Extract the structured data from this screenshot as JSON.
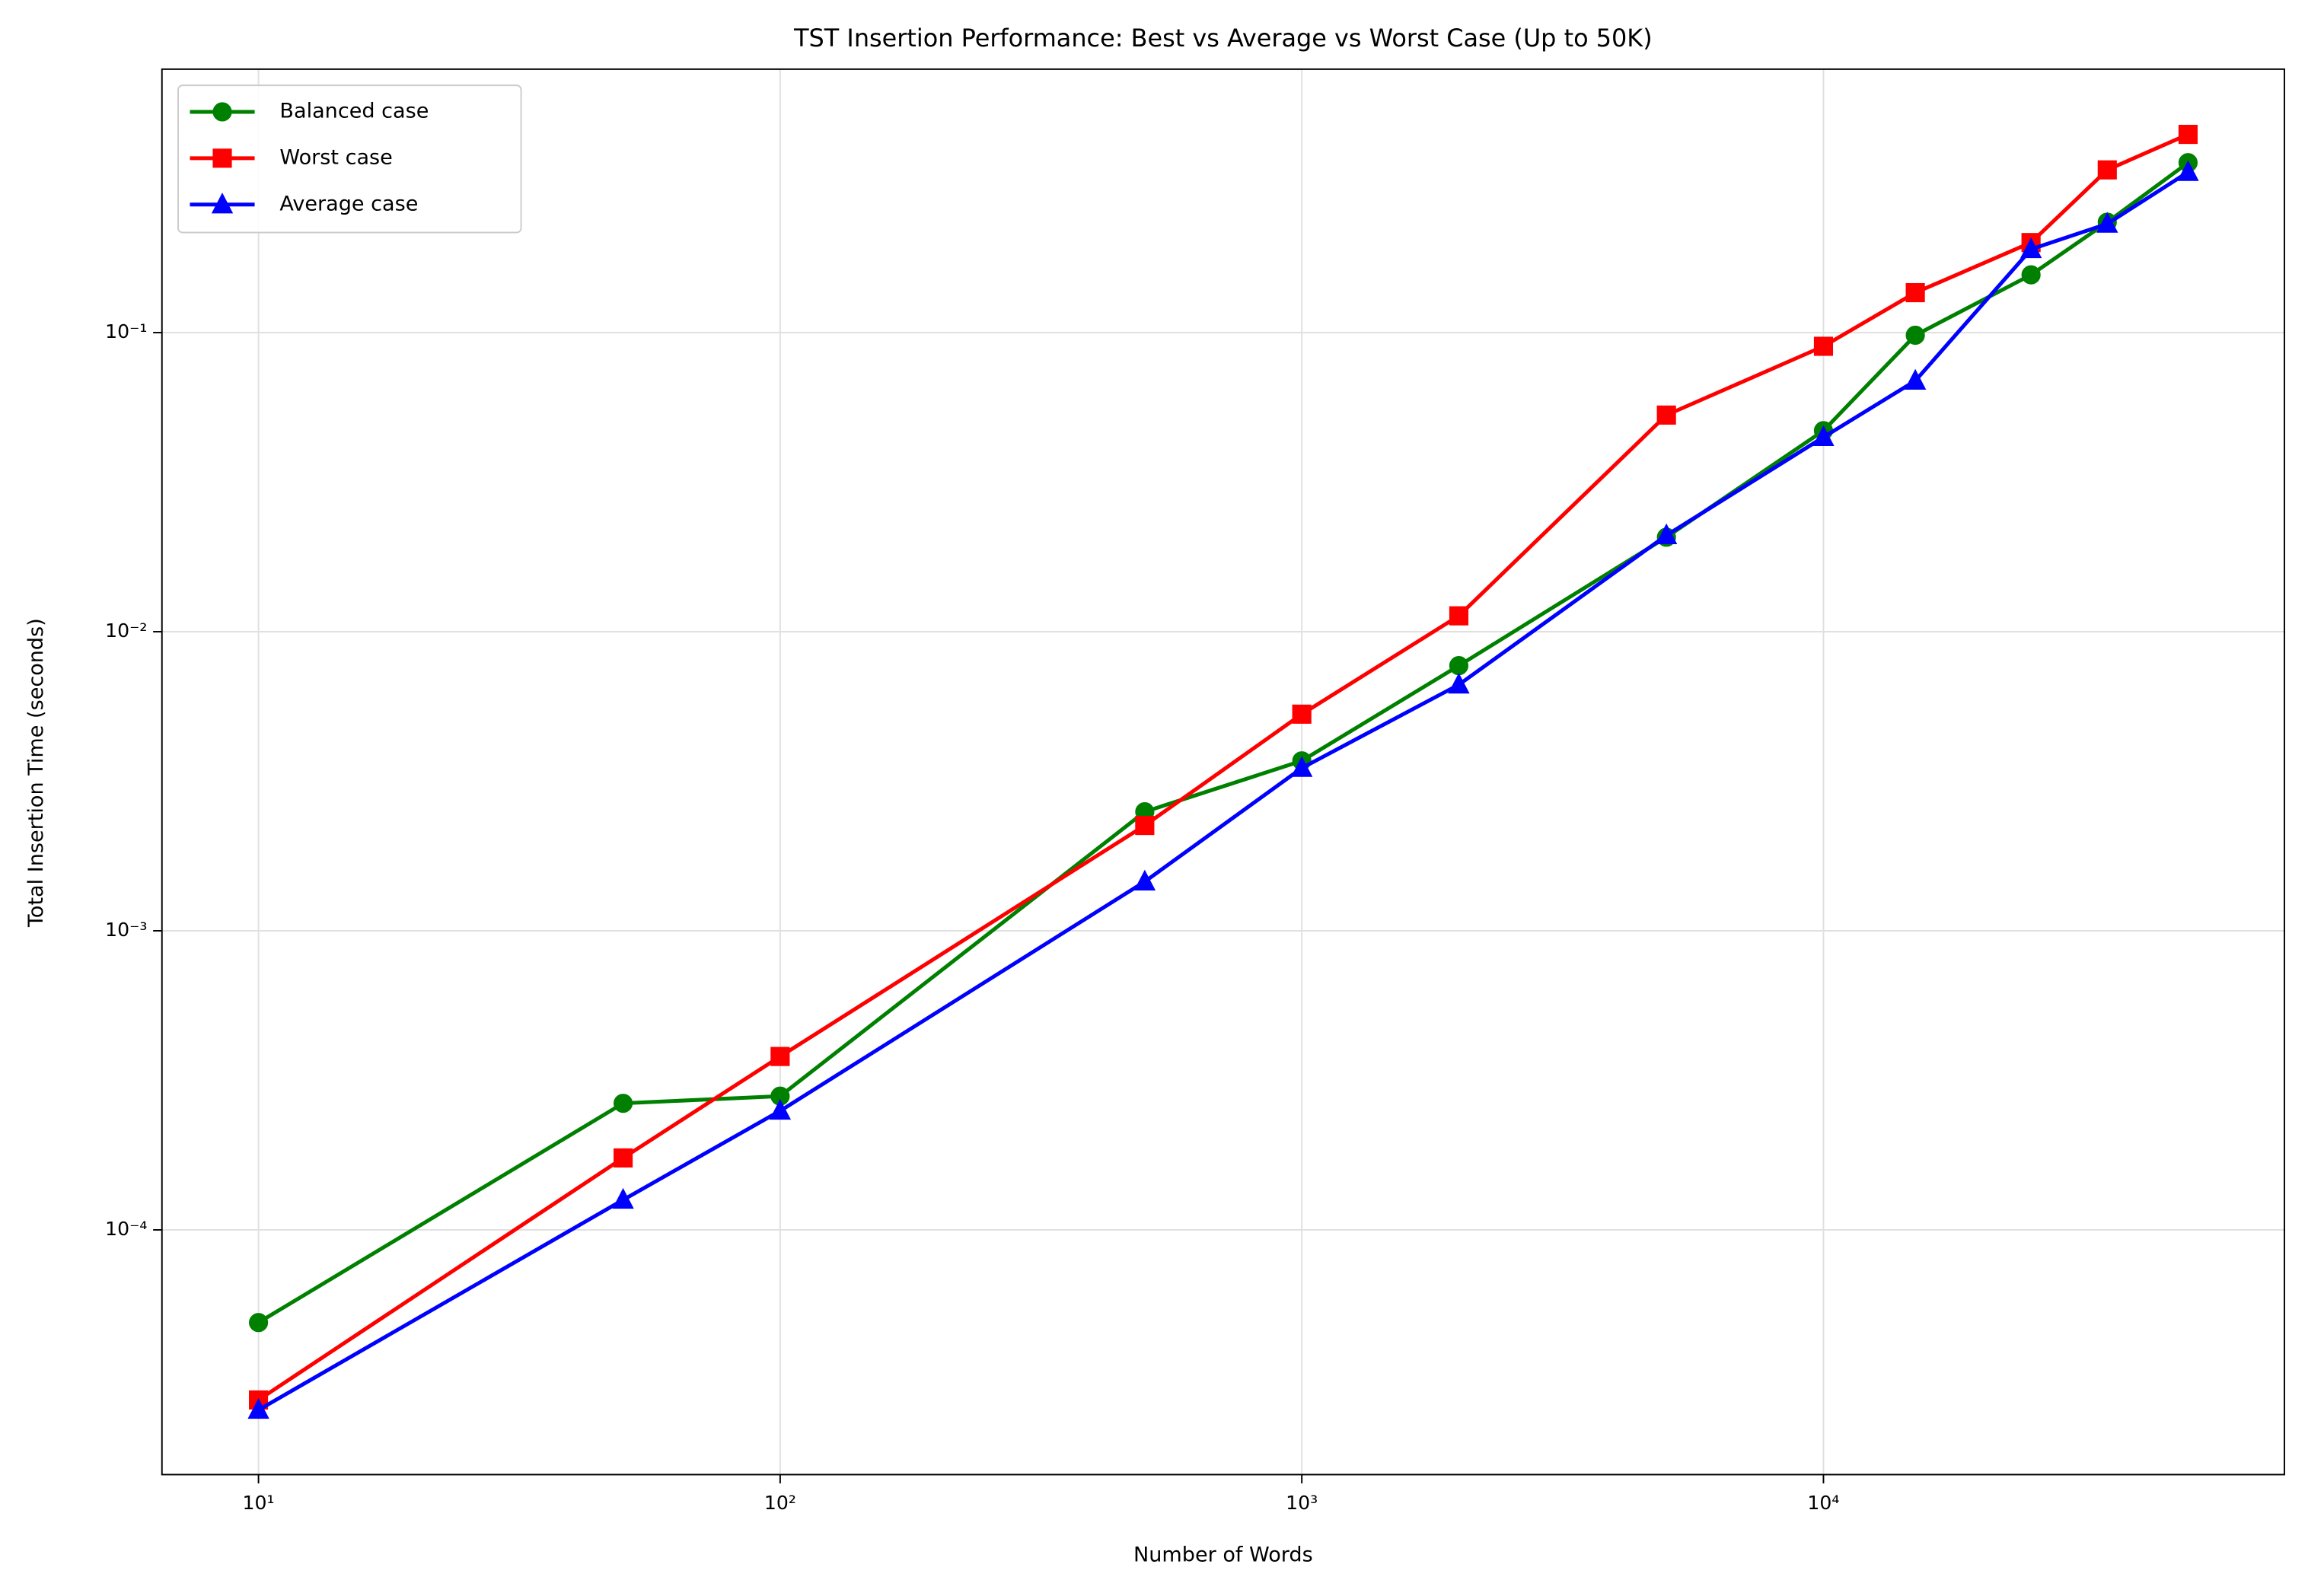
{
  "chart_data": {
    "type": "line",
    "title": "TST Insertion Performance: Best vs Average vs Worst Case (Up to 50K)",
    "x_label": "Number of Words",
    "y_label": "Total Insertion Time (seconds)",
    "x": [
      10,
      50,
      100,
      500,
      1000,
      2000,
      5000,
      10000,
      15000,
      25000,
      35000,
      50000
    ],
    "series": [
      {
        "name": "Balanced case",
        "color": "#008000",
        "marker": "circle",
        "values": [
          4.9e-05,
          0.000265,
          0.00028,
          0.0025,
          0.0037,
          0.0077,
          0.0207,
          0.047,
          0.098,
          0.156,
          0.234,
          0.37
        ]
      },
      {
        "name": "Worst case",
        "color": "#ff0000",
        "marker": "square",
        "values": [
          2.7e-05,
          0.000174,
          0.00038,
          0.00225,
          0.0053,
          0.0113,
          0.053,
          0.09,
          0.136,
          0.2,
          0.35,
          0.46
        ]
      },
      {
        "name": "Average case",
        "color": "#0000ff",
        "marker": "triangle",
        "values": [
          2.5e-05,
          0.000126,
          0.00025,
          0.00146,
          0.0035,
          0.00665,
          0.021,
          0.0447,
          0.069,
          0.19,
          0.231,
          0.344
        ]
      }
    ],
    "x_scale": "log",
    "y_scale": "log",
    "xlim": [
      6.53,
      76500
    ],
    "ylim": [
      1.52e-05,
      0.76
    ],
    "xticks": [
      {
        "value": 10,
        "label": "10¹"
      },
      {
        "value": 100,
        "label": "10²"
      },
      {
        "value": 1000,
        "label": "10³"
      },
      {
        "value": 10000,
        "label": "10⁴"
      }
    ],
    "yticks": [
      {
        "value": 0.0001,
        "label": "10⁻⁴"
      },
      {
        "value": 0.001,
        "label": "10⁻³"
      },
      {
        "value": 0.01,
        "label": "10⁻²"
      },
      {
        "value": 0.1,
        "label": "10⁻¹"
      }
    ],
    "grid": true,
    "legend": "upper left"
  }
}
